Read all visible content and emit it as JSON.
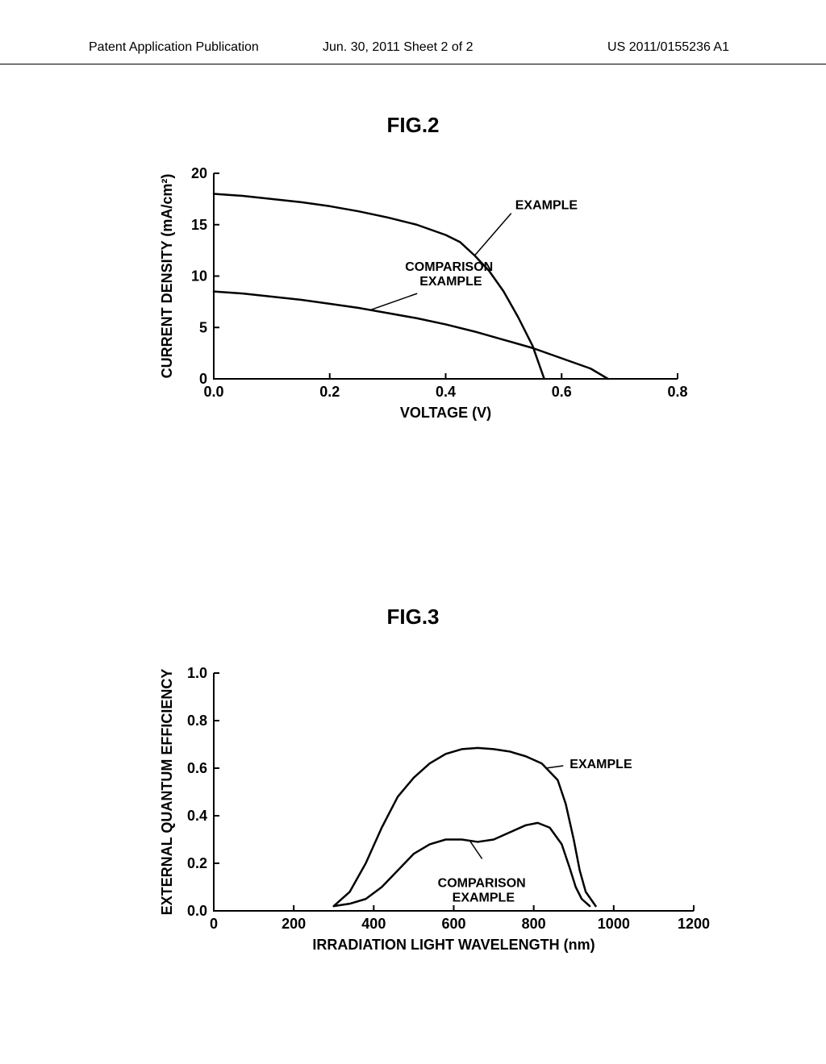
{
  "header": {
    "left": "Patent Application Publication",
    "mid": "Jun. 30, 2011  Sheet 2 of 2",
    "right": "US 2011/0155236 A1"
  },
  "fig2": {
    "title": "FIG.2",
    "type": "line",
    "xlabel": "VOLTAGE (V)",
    "ylabel": "CURRENT DENSITY (mA/cm²)",
    "xlim": [
      0.0,
      0.8
    ],
    "ylim": [
      0,
      20
    ],
    "xticks": [
      0.0,
      0.2,
      0.4,
      0.6,
      0.8
    ],
    "xtick_labels": [
      "0.0",
      "0.2",
      "0.4",
      "0.6",
      "0.8"
    ],
    "yticks": [
      0,
      5,
      10,
      15,
      20
    ],
    "ytick_labels": [
      "0",
      "5",
      "10",
      "15",
      "20"
    ],
    "series": {
      "example": {
        "label": "EXAMPLE",
        "label_pos": [
          0.52,
          16.5
        ],
        "points": [
          [
            0.0,
            18.0
          ],
          [
            0.05,
            17.8
          ],
          [
            0.1,
            17.5
          ],
          [
            0.15,
            17.2
          ],
          [
            0.2,
            16.8
          ],
          [
            0.25,
            16.3
          ],
          [
            0.3,
            15.7
          ],
          [
            0.35,
            15.0
          ],
          [
            0.4,
            14.0
          ],
          [
            0.425,
            13.3
          ],
          [
            0.45,
            12.0
          ],
          [
            0.475,
            10.5
          ],
          [
            0.5,
            8.5
          ],
          [
            0.525,
            6.0
          ],
          [
            0.55,
            3.2
          ],
          [
            0.57,
            0.0
          ]
        ]
      },
      "comparison": {
        "label": "COMPARISON\nEXAMPLE",
        "label_pos": [
          0.33,
          10.5
        ],
        "points": [
          [
            0.0,
            8.5
          ],
          [
            0.05,
            8.3
          ],
          [
            0.1,
            8.0
          ],
          [
            0.15,
            7.7
          ],
          [
            0.2,
            7.3
          ],
          [
            0.25,
            6.9
          ],
          [
            0.3,
            6.4
          ],
          [
            0.35,
            5.9
          ],
          [
            0.4,
            5.3
          ],
          [
            0.45,
            4.6
          ],
          [
            0.5,
            3.8
          ],
          [
            0.55,
            3.0
          ],
          [
            0.6,
            2.0
          ],
          [
            0.65,
            1.0
          ],
          [
            0.68,
            0.0
          ]
        ]
      }
    },
    "line_color": "#000000",
    "line_width": 2.5,
    "axis_color": "#000000",
    "axis_width": 2,
    "tick_fontsize": 18,
    "label_fontsize": 18,
    "annotation_fontsize": 16
  },
  "fig3": {
    "title": "FIG.3",
    "type": "line",
    "xlabel": "IRRADIATION LIGHT WAVELENGTH (nm)",
    "ylabel": "EXTERNAL QUANTUM EFFICIENCY",
    "xlim": [
      0,
      1200
    ],
    "ylim": [
      0.0,
      1.0
    ],
    "xticks": [
      0,
      200,
      400,
      600,
      800,
      1000,
      1200
    ],
    "xtick_labels": [
      "0",
      "200",
      "400",
      "600",
      "800",
      "1000",
      "1200"
    ],
    "yticks": [
      0.0,
      0.2,
      0.4,
      0.6,
      0.8,
      1.0
    ],
    "ytick_labels": [
      "0.0",
      "0.2",
      "0.4",
      "0.6",
      "0.8",
      "1.0"
    ],
    "series": {
      "example": {
        "label": "EXAMPLE",
        "label_pos": [
          890,
          0.6
        ],
        "points": [
          [
            300,
            0.02
          ],
          [
            340,
            0.08
          ],
          [
            380,
            0.2
          ],
          [
            420,
            0.35
          ],
          [
            460,
            0.48
          ],
          [
            500,
            0.56
          ],
          [
            540,
            0.62
          ],
          [
            580,
            0.66
          ],
          [
            620,
            0.68
          ],
          [
            660,
            0.685
          ],
          [
            700,
            0.68
          ],
          [
            740,
            0.67
          ],
          [
            780,
            0.65
          ],
          [
            820,
            0.62
          ],
          [
            860,
            0.55
          ],
          [
            880,
            0.45
          ],
          [
            900,
            0.3
          ],
          [
            915,
            0.17
          ],
          [
            930,
            0.08
          ],
          [
            955,
            0.02
          ]
        ]
      },
      "comparison": {
        "label": "COMPARISON\nEXAMPLE",
        "label_pos": [
          560,
          0.1
        ],
        "points": [
          [
            300,
            0.02
          ],
          [
            340,
            0.03
          ],
          [
            380,
            0.05
          ],
          [
            420,
            0.1
          ],
          [
            460,
            0.17
          ],
          [
            500,
            0.24
          ],
          [
            540,
            0.28
          ],
          [
            580,
            0.3
          ],
          [
            620,
            0.3
          ],
          [
            660,
            0.29
          ],
          [
            700,
            0.3
          ],
          [
            740,
            0.33
          ],
          [
            780,
            0.36
          ],
          [
            810,
            0.37
          ],
          [
            840,
            0.35
          ],
          [
            870,
            0.28
          ],
          [
            890,
            0.18
          ],
          [
            905,
            0.1
          ],
          [
            920,
            0.05
          ],
          [
            940,
            0.02
          ]
        ]
      }
    },
    "line_color": "#000000",
    "line_width": 2.5,
    "axis_color": "#000000",
    "axis_width": 2,
    "tick_fontsize": 18,
    "label_fontsize": 18,
    "annotation_fontsize": 16
  }
}
